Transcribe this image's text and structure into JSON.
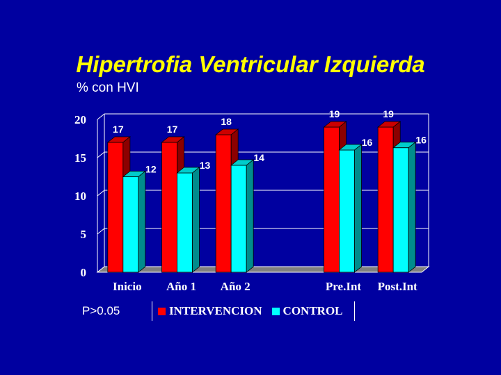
{
  "slide": {
    "title": "Hipertrofia Ventricular Izquierda",
    "subtitle": "% con HVI",
    "footnote": "P>0.05"
  },
  "chart_data": {
    "type": "bar",
    "categories": [
      "Inicio",
      "Año 1",
      "Año 2",
      "",
      "Pre.Int",
      "Post.Int"
    ],
    "series": [
      {
        "name": "INTERVENCION",
        "color": "#ff0000",
        "values": [
          17,
          17,
          18,
          null,
          19,
          19
        ],
        "labels": [
          "17",
          "17",
          "18",
          "",
          "19",
          "19"
        ]
      },
      {
        "name": "CONTROL",
        "color": "#00ffff",
        "values": [
          12.5,
          13,
          14,
          null,
          16,
          16.3
        ],
        "labels": [
          "12",
          "13",
          "14",
          "",
          "16",
          "16"
        ]
      }
    ],
    "yticks": [
      "0",
      "5",
      "10",
      "15",
      "20"
    ],
    "ylim": [
      0,
      20
    ],
    "grid": true,
    "legend": "bottom"
  }
}
